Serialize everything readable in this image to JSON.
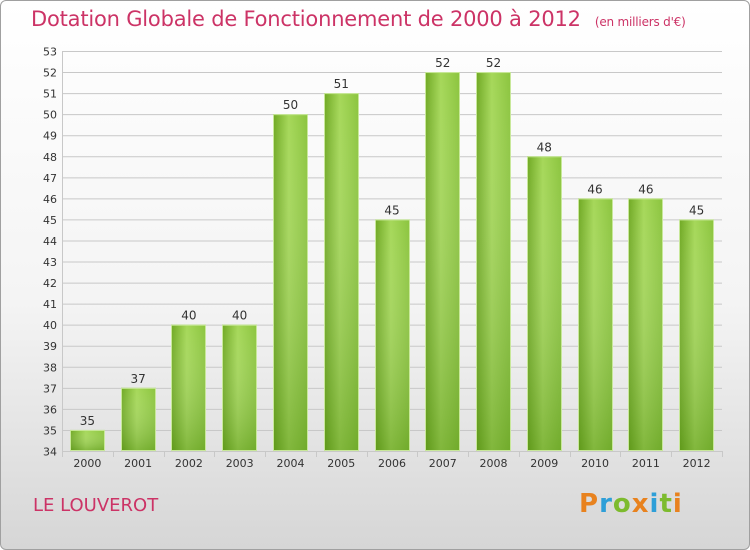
{
  "header": {
    "title": "Dotation Globale de Fonctionnement de 2000 à 2012",
    "subtitle": "(en milliers d'€)"
  },
  "footer": {
    "commune": "LE LOUVEROT",
    "logo": "Proxiti"
  },
  "colors": {
    "title": "#cc3366",
    "bar_light": "#9fd24f",
    "bar_dark": "#5e9a14",
    "grid": "#c8c8c8"
  },
  "chart_data": {
    "type": "bar",
    "title": "Dotation Globale de Fonctionnement de 2000 à 2012",
    "subtitle": "(en milliers d'€)",
    "xlabel": "",
    "ylabel": "",
    "ylim": [
      34,
      53
    ],
    "yticks": [
      34,
      35,
      36,
      37,
      38,
      39,
      40,
      41,
      42,
      43,
      44,
      45,
      46,
      47,
      48,
      49,
      50,
      51,
      52,
      53
    ],
    "grid": true,
    "categories": [
      "2000",
      "2001",
      "2002",
      "2003",
      "2004",
      "2005",
      "2006",
      "2007",
      "2008",
      "2009",
      "2010",
      "2011",
      "2012"
    ],
    "values": [
      35,
      37,
      40,
      40,
      50,
      51,
      45,
      52,
      52,
      48,
      46,
      46,
      45
    ]
  }
}
